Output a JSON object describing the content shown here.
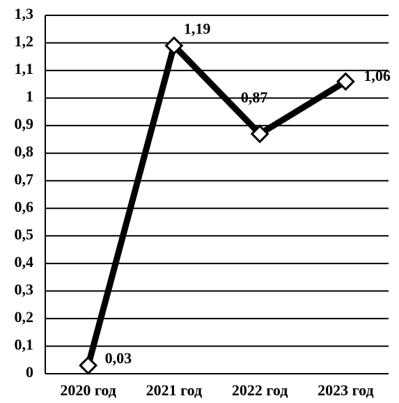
{
  "chart_data": {
    "type": "line",
    "categories": [
      "2020 год",
      "2021 год",
      "2022 год",
      "2023 год"
    ],
    "series": [
      {
        "name": null,
        "color": "#000000",
        "values": [
          0.03,
          1.19,
          0.87,
          1.06
        ],
        "value_labels": [
          "0,03",
          "1,19",
          "0,87",
          "1,06"
        ]
      }
    ],
    "ylim": [
      0,
      1.3
    ],
    "yticks": [
      0,
      {
        "value": 0.1,
        "label": "0,1"
      },
      {
        "value": 0.2,
        "label": "0,2"
      },
      {
        "value": 0.3,
        "label": "0,3"
      },
      {
        "value": 0.4,
        "label": "0,4"
      },
      {
        "value": 0.5,
        "label": "0,5"
      },
      {
        "value": 0.6,
        "label": "0,6"
      },
      {
        "value": 0.7,
        "label": "0,7"
      },
      {
        "value": 0.8,
        "label": "0,8"
      },
      {
        "value": 0.9,
        "label": "0,9"
      },
      1,
      {
        "value": 1.1,
        "label": "1,1"
      },
      {
        "value": 1.2,
        "label": "1,2"
      },
      {
        "value": 1.3,
        "label": "1,3"
      }
    ],
    "grid": true
  }
}
